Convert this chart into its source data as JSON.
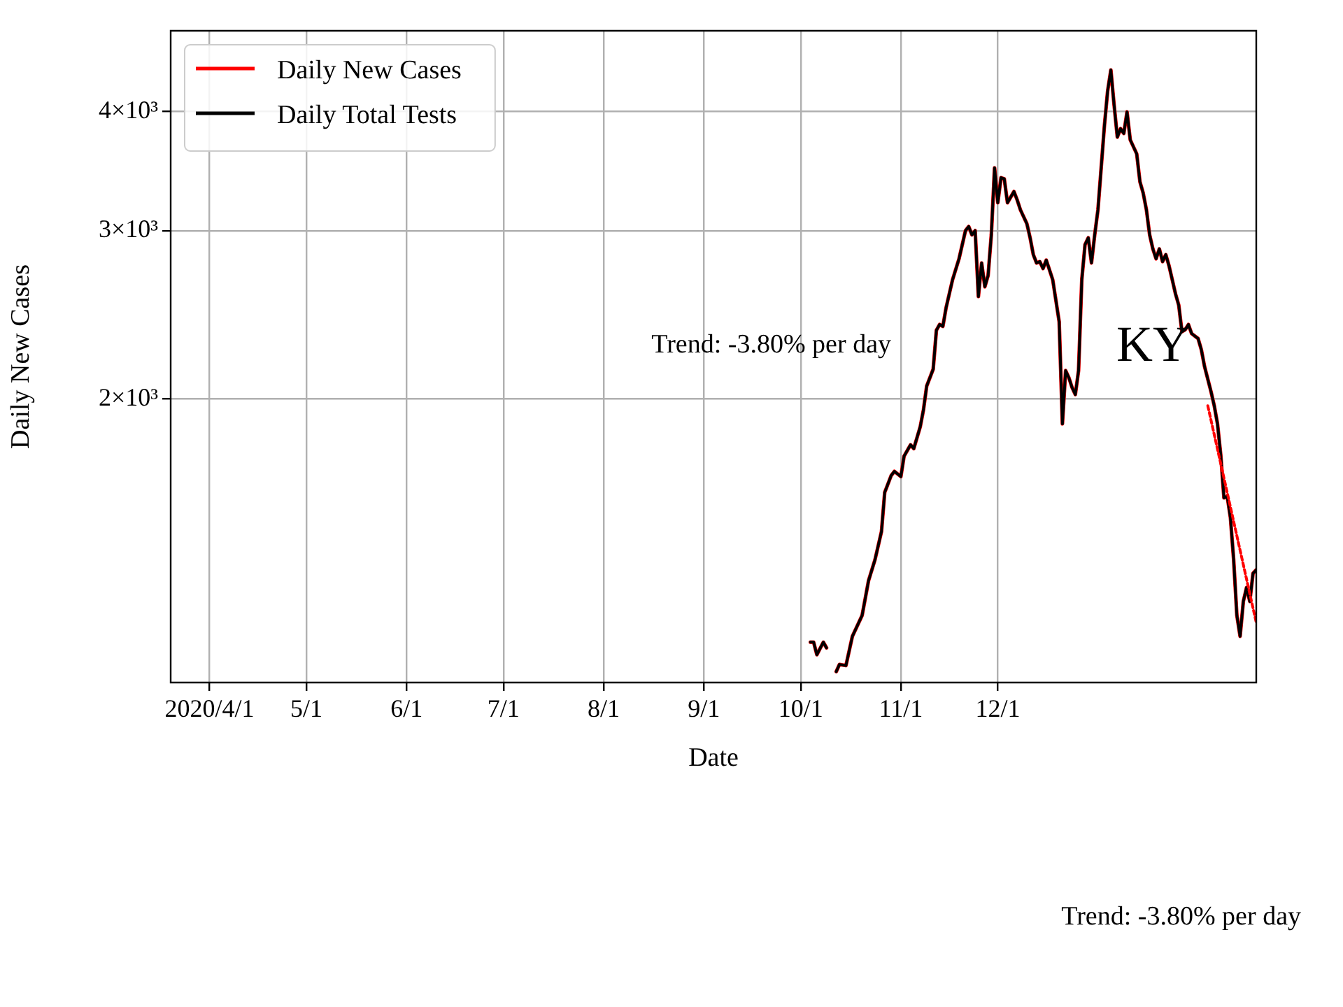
{
  "chart_data": {
    "type": "line",
    "xlabel": "Date",
    "ylabel": "Daily New Cases",
    "log": "y",
    "grid": true,
    "legend": "top left",
    "line_style": "solid",
    "marker": "none",
    "x": [
      "2020-10-04",
      "2020-10-05",
      "2020-10-06",
      "2020-10-08",
      "2020-10-09",
      "2020-10-11",
      "2020-10-12",
      "2020-10-13",
      "2020-10-15",
      "2020-10-17",
      "2020-10-20",
      "2020-10-22",
      "2020-10-24",
      "2020-10-26",
      "2020-10-27",
      "2020-10-29",
      "2020-10-30",
      "2020-11-01",
      "2020-11-02",
      "2020-11-04",
      "2020-11-05",
      "2020-11-07",
      "2020-11-08",
      "2020-11-09",
      "2020-11-11",
      "2020-11-12",
      "2020-11-13",
      "2020-11-14",
      "2020-11-15",
      "2020-11-17",
      "2020-11-19",
      "2020-11-21",
      "2020-11-22",
      "2020-11-23",
      "2020-11-24",
      "2020-11-25",
      "2020-11-26",
      "2020-11-27",
      "2020-11-28",
      "2020-11-29",
      "2020-11-30",
      "2020-12-01",
      "2020-12-02",
      "2020-12-03",
      "2020-12-04",
      "2020-12-05",
      "2020-12-06",
      "2020-12-07",
      "2020-12-08",
      "2020-12-10",
      "2020-12-11",
      "2020-12-12",
      "2020-12-13",
      "2020-12-14",
      "2020-12-15",
      "2020-12-16",
      "2020-12-18",
      "2020-12-20",
      "2020-12-21",
      "2020-12-22",
      "2020-12-23",
      "2020-12-24",
      "2020-12-25",
      "2020-12-26",
      "2020-12-27",
      "2020-12-28",
      "2020-12-29",
      "2020-12-30",
      "2020-12-31",
      "2021-01-01",
      "2021-01-02",
      "2021-01-03",
      "2021-01-04",
      "2021-01-05",
      "2021-01-06",
      "2021-01-07",
      "2021-01-08",
      "2021-01-09",
      "2021-01-10",
      "2021-01-11",
      "2021-01-13",
      "2021-01-14",
      "2021-01-15",
      "2021-01-16",
      "2021-01-17",
      "2021-01-18",
      "2021-01-19",
      "2021-01-20",
      "2021-01-21",
      "2021-01-22",
      "2021-01-23",
      "2021-01-24",
      "2021-01-25",
      "2021-01-26",
      "2021-01-27",
      "2021-01-28",
      "2021-01-29",
      "2021-01-30",
      "2021-02-01",
      "2021-02-02",
      "2021-02-03",
      "2021-02-05",
      "2021-02-06",
      "2021-02-07",
      "2021-02-08",
      "2021-02-09",
      "2021-02-10",
      "2021-02-11",
      "2021-02-12",
      "2021-02-13",
      "2021-02-14",
      "2021-02-15",
      "2021-02-16",
      "2021-02-17",
      "2021-02-18",
      "2021-02-19"
    ],
    "series": [
      {
        "name": "Daily New Cases",
        "color": "#ff0000",
        "values": [
          1111,
          1111,
          1078,
          1111,
          1096,
          null,
          1035,
          1053,
          1050,
          1127,
          1185,
          1289,
          1356,
          1451,
          1595,
          1661,
          1678,
          1657,
          1741,
          1789,
          1773,
          1869,
          1947,
          2062,
          2147,
          2359,
          2392,
          2381,
          2491,
          2665,
          2803,
          3000,
          3030,
          2970,
          3000,
          2559,
          2775,
          2620,
          2692,
          2970,
          3491,
          3209,
          3409,
          3400,
          3209,
          3253,
          3297,
          3231,
          3155,
          3051,
          2949,
          2831,
          2775,
          2784,
          2738,
          2794,
          2665,
          2408,
          1882,
          2140,
          2104,
          2054,
          2020,
          2140,
          2665,
          2900,
          2949,
          2775,
          2970,
          3155,
          3491,
          3864,
          4203,
          4421,
          4063,
          3760,
          3837,
          3793,
          3996,
          3735,
          3611,
          3375,
          3285,
          3155,
          2970,
          2871,
          2803,
          2871,
          2784,
          2831,
          2756,
          2665,
          2576,
          2507,
          2351,
          2362,
          2392,
          2340,
          2312,
          2251,
          2161,
          2034,
          1966,
          1882,
          1747,
          1574,
          1580,
          1501,
          1356,
          1185,
          1127,
          1226,
          1268,
          1226,
          1312,
          1323
        ]
      },
      {
        "name": "Daily Total Tests",
        "color": "#000000",
        "values": [
          1111,
          1111,
          1078,
          1111,
          1096,
          null,
          1035,
          1053,
          1050,
          1127,
          1185,
          1289,
          1356,
          1451,
          1595,
          1661,
          1678,
          1657,
          1741,
          1789,
          1773,
          1869,
          1947,
          2062,
          2147,
          2359,
          2392,
          2381,
          2491,
          2665,
          2803,
          3000,
          3030,
          2970,
          3000,
          2559,
          2775,
          2620,
          2692,
          2970,
          3491,
          3209,
          3409,
          3400,
          3209,
          3253,
          3297,
          3231,
          3155,
          3051,
          2949,
          2831,
          2775,
          2784,
          2738,
          2794,
          2665,
          2408,
          1882,
          2140,
          2104,
          2054,
          2020,
          2140,
          2665,
          2900,
          2949,
          2775,
          2970,
          3155,
          3491,
          3864,
          4203,
          4421,
          4063,
          3760,
          3837,
          3793,
          3996,
          3735,
          3611,
          3375,
          3285,
          3155,
          2970,
          2871,
          2803,
          2871,
          2784,
          2831,
          2756,
          2665,
          2576,
          2507,
          2351,
          2362,
          2392,
          2340,
          2312,
          2251,
          2161,
          2034,
          1966,
          1882,
          1747,
          1574,
          1580,
          1501,
          1356,
          1185,
          1127,
          1226,
          1268,
          1226,
          1312,
          1323
        ]
      },
      {
        "type": "line",
        "color": "#ff0000",
        "line_style": "dotted",
        "x": [
          "2021-02-04",
          "2021-02-19"
        ],
        "values": [
          1966,
          1165
        ]
      }
    ],
    "xlim": [
      "2020-03-20",
      "2021-02-19"
    ],
    "xticks": [
      {
        "value": "2020-04-01",
        "label": "2020/4/1"
      },
      {
        "value": "2020-05-01",
        "label": "5/1"
      },
      {
        "value": "2020-06-01",
        "label": "6/1"
      },
      {
        "value": "2020-07-01",
        "label": "7/1"
      },
      {
        "value": "2020-08-01",
        "label": "8/1"
      },
      {
        "value": "2020-09-01",
        "label": "9/1"
      },
      {
        "value": "2020-10-01",
        "label": "10/1"
      },
      {
        "value": "2020-11-01",
        "label": "11/1"
      },
      {
        "value": "2020-12-01",
        "label": "12/1"
      }
    ],
    "ylim": [
      1008,
      4860
    ],
    "yticks": [
      {
        "value": 2000,
        "label": "2×10³"
      },
      {
        "value": 3000,
        "label": "3×10³"
      },
      {
        "value": 4000,
        "label": "4×10³"
      }
    ],
    "annotations": [
      "KY",
      "Trend: -3.80% per day",
      "Trend: -3.80% per day"
    ]
  }
}
